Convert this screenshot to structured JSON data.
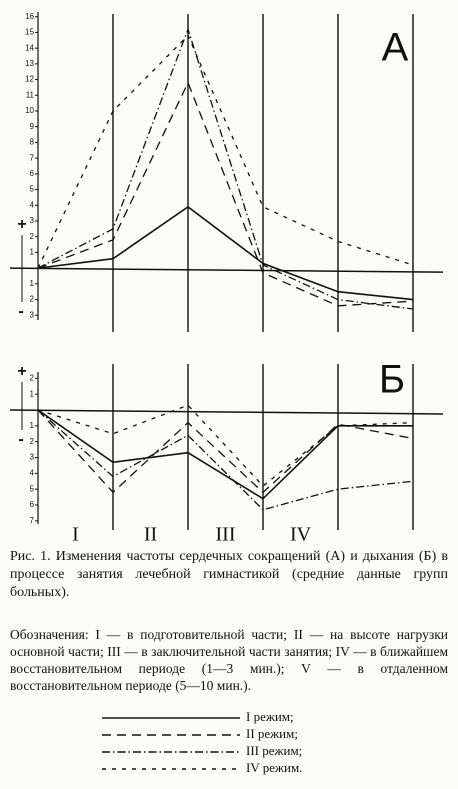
{
  "chart_data": [
    {
      "type": "line",
      "title": "А",
      "sign_plus": "+",
      "sign_minus": "-",
      "x": [
        0,
        1,
        2,
        3,
        4,
        5
      ],
      "xlim": [
        0,
        5.4
      ],
      "ylim": [
        -3.3,
        16.3
      ],
      "yticks": [
        16,
        15,
        14,
        13,
        12,
        11,
        10,
        9,
        8,
        7,
        6,
        5,
        4,
        3,
        2,
        1,
        {
          "value": -1,
          "label": "1"
        },
        {
          "value": -2,
          "label": "2"
        },
        {
          "value": -3,
          "label": "3"
        }
      ],
      "series": [
        {
          "name": "I режим;",
          "color": "#111111",
          "dash": "solid",
          "values": [
            0,
            0.6,
            3.9,
            0.3,
            -1.5,
            -2.0
          ]
        },
        {
          "name": "II режим;",
          "color": "#111111",
          "dash": "dashed",
          "values": [
            0,
            1.8,
            11.8,
            -0.3,
            -2.4,
            -2.1
          ]
        },
        {
          "name": "III режим;",
          "color": "#111111",
          "dash": "dashdot",
          "values": [
            0,
            2.5,
            15.2,
            0.2,
            -2.0,
            -2.6
          ]
        },
        {
          "name": "IV режим.",
          "color": "#111111",
          "dash": "plus",
          "values": [
            0,
            10,
            14.8,
            3.9,
            1.7,
            0.2
          ]
        }
      ]
    },
    {
      "type": "line",
      "title": "Б",
      "sign_plus": "+",
      "sign_minus": "-",
      "x": [
        0,
        1,
        2,
        3,
        4,
        5
      ],
      "xlim": [
        0,
        5.4
      ],
      "ylim": [
        -7.2,
        2.4
      ],
      "yticks": [
        2,
        1,
        {
          "value": -1,
          "label": "1"
        },
        {
          "value": -2,
          "label": "2"
        },
        {
          "value": -3,
          "label": "3"
        },
        {
          "value": -4,
          "label": "4"
        },
        {
          "value": -5,
          "label": "5"
        },
        {
          "value": -6,
          "label": "6"
        },
        {
          "value": -7,
          "label": "7"
        }
      ],
      "period_labels": [
        "I",
        "II",
        "III",
        "IV"
      ],
      "series": [
        {
          "color": "#111111",
          "dash": "solid",
          "values": [
            0,
            -3.3,
            -2.7,
            -5.6,
            -1.0,
            -1.0
          ]
        },
        {
          "color": "#111111",
          "dash": "dashed",
          "values": [
            0,
            -5.2,
            -0.8,
            -5.2,
            -0.9,
            -1.8
          ]
        },
        {
          "color": "#111111",
          "dash": "dashdot",
          "values": [
            0,
            -4.2,
            -1.6,
            -6.3,
            -5.0,
            -4.5
          ]
        },
        {
          "color": "#111111",
          "dash": "plus",
          "values": [
            0,
            -1.5,
            0.3,
            -4.8,
            -1.0,
            -0.8
          ]
        }
      ]
    }
  ],
  "caption": "Рис. 1. Изменения частоты сердечных сокращений (А) и дыхания (Б) в процессе занятия лечебной гимнастикой (средние данные групп больных).",
  "notes": "Обозначения: I — в подготовительной части; II — на высоте нагрузки основной части; III — в заключительной части занятия; IV — в ближайшем восстановительном периоде (1—3 мин.); V — в отдаленном восстановительном периоде (5—10 мин.)."
}
